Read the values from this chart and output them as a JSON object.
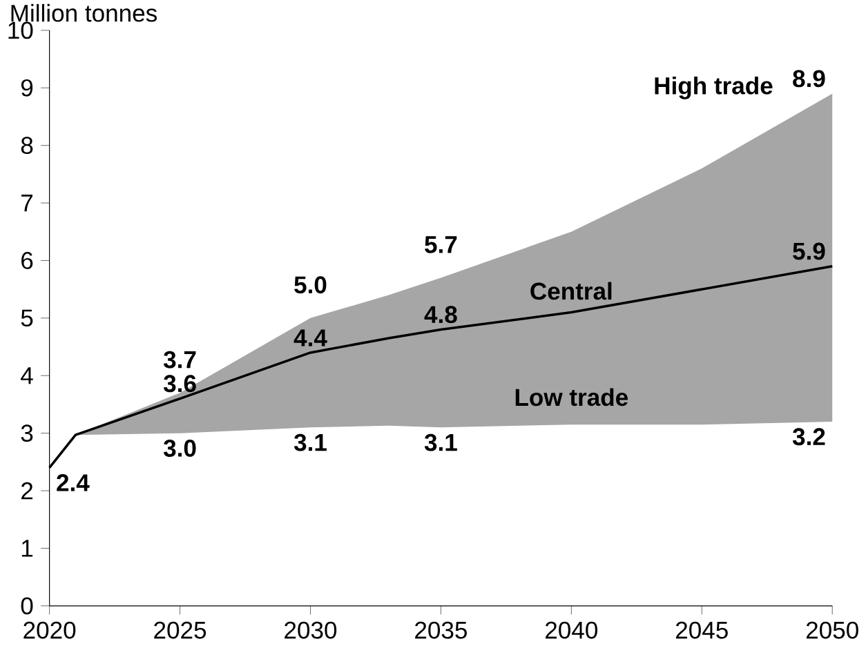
{
  "chart_data": {
    "type": "line",
    "ylabel": "Million tonnes",
    "xlim": [
      2020,
      2050
    ],
    "xticks": [
      2020,
      2025,
      2030,
      2035,
      2040,
      2045,
      2050
    ],
    "ylim": [
      0,
      10
    ],
    "yticks": [
      0,
      1,
      2,
      3,
      4,
      5,
      6,
      7,
      8,
      9,
      10
    ],
    "grid": false,
    "series": [
      {
        "name": "Central",
        "color": "#000000",
        "x": [
          2020,
          2021,
          2025,
          2030,
          2033,
          2035,
          2040,
          2045,
          2050
        ],
        "values": [
          2.4,
          2.97,
          3.6,
          4.4,
          4.65,
          4.8,
          5.1,
          5.5,
          5.9
        ],
        "lower": [
          null,
          2.97,
          3.0,
          3.1,
          3.13,
          3.1,
          3.15,
          3.15,
          3.2
        ],
        "upper": [
          null,
          2.97,
          3.7,
          5.0,
          5.4,
          5.7,
          6.5,
          7.6,
          8.9
        ],
        "value_labels": [
          "2.4",
          null,
          "3.6",
          "4.4",
          null,
          "4.8",
          null,
          null,
          "5.9"
        ]
      }
    ],
    "annotations": [
      "High trade",
      "Low trade",
      {
        "text": "3.7",
        "x": 2025,
        "y": 3.7
      },
      {
        "text": "5.0",
        "x": 2030,
        "y": 5.0
      },
      {
        "text": "5.7",
        "x": 2035,
        "y": 5.7
      },
      {
        "text": "8.9",
        "x": 2050,
        "y": 8.9
      },
      {
        "text": "3.0",
        "x": 2025,
        "y": 3.0
      },
      {
        "text": "3.1",
        "x": 2030,
        "y": 3.1
      },
      {
        "text": "3.1",
        "x": 2035,
        "y": 3.1
      },
      {
        "text": "3.2",
        "x": 2050,
        "y": 3.2
      }
    ]
  }
}
